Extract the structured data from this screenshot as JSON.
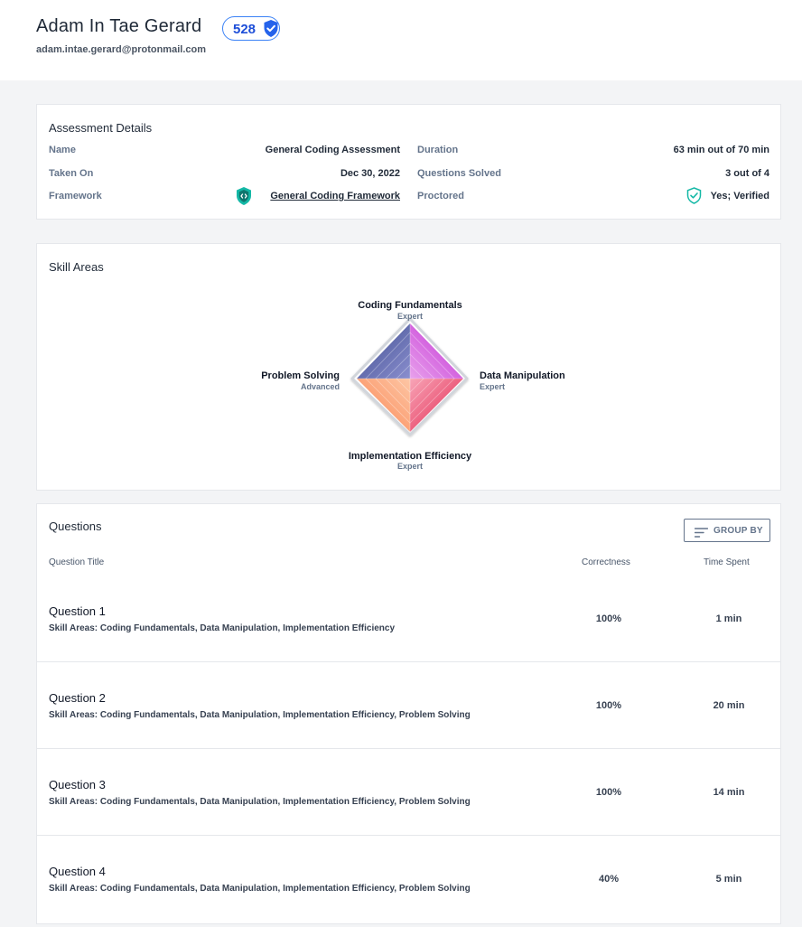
{
  "user": {
    "name": "Adam In Tae Gerard",
    "score": "528",
    "email": "adam.intae.gerard@protonmail.com"
  },
  "colors": {
    "accent": "#3b82f6",
    "brand_teal": "#14b8a6",
    "label": "#64748b"
  },
  "details": {
    "title": "Assessment Details",
    "name_label": "Name",
    "name_value": "General Coding Assessment",
    "taken_label": "Taken On",
    "taken_value": "Dec 30, 2022",
    "framework_label": "Framework",
    "framework_value": "General Coding Framework",
    "framework_icon": "shield-code-icon",
    "duration_label": "Duration",
    "duration_value": "63 min out of 70 min",
    "solved_label": "Questions Solved",
    "solved_value": "3 out of 4",
    "proctored_label": "Proctored",
    "proctored_value": "Yes; Verified",
    "proctored_icon": "shield-check-icon"
  },
  "skills": {
    "title": "Skill Areas",
    "areas": [
      {
        "name": "Coding Fundamentals",
        "level": "Expert",
        "color": "#c026d3"
      },
      {
        "name": "Data Manipulation",
        "level": "Expert",
        "color": "#e11d48"
      },
      {
        "name": "Implementation Efficiency",
        "level": "Expert",
        "color": "#fb923c"
      },
      {
        "name": "Problem Solving",
        "level": "Advanced",
        "color": "#475569"
      }
    ]
  },
  "questions": {
    "title": "Questions",
    "group_by_label": "GROUP BY",
    "col_title": "Question Title",
    "col_correctness": "Correctness",
    "col_time": "Time Spent",
    "rows": [
      {
        "title": "Question 1",
        "skills": "Skill Areas: Coding Fundamentals, Data Manipulation, Implementation Efficiency",
        "correctness": "100%",
        "time": "1 min"
      },
      {
        "title": "Question 2",
        "skills": "Skill Areas: Coding Fundamentals, Data Manipulation, Implementation Efficiency, Problem Solving",
        "correctness": "100%",
        "time": "20 min"
      },
      {
        "title": "Question 3",
        "skills": "Skill Areas: Coding Fundamentals, Data Manipulation, Implementation Efficiency, Problem Solving",
        "correctness": "100%",
        "time": "14 min"
      },
      {
        "title": "Question 4",
        "skills": "Skill Areas: Coding Fundamentals, Data Manipulation, Implementation Efficiency, Problem Solving",
        "correctness": "40%",
        "time": "5 min"
      }
    ]
  }
}
